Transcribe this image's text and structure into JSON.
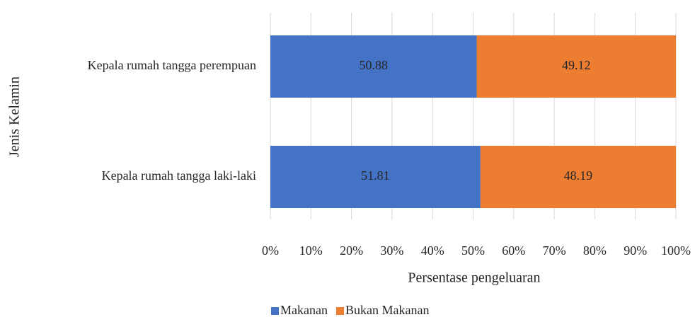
{
  "chart_data": {
    "type": "stacked_barh",
    "categories": [
      "Kepala rumah tangga perempuan",
      "Kepala rumah tangga laki-laki"
    ],
    "series": [
      {
        "name": "Makanan",
        "color": "#4472c4",
        "values": [
          50.88,
          51.81
        ]
      },
      {
        "name": "Bukan Makanan",
        "color": "#ed7d31",
        "values": [
          49.12,
          48.19
        ]
      }
    ],
    "xlim": [
      0,
      100
    ],
    "xticks": [
      {
        "value": 0,
        "label": "0%"
      },
      {
        "value": 10,
        "label": "10%"
      },
      {
        "value": 20,
        "label": "20%"
      },
      {
        "value": 30,
        "label": "30%"
      },
      {
        "value": 40,
        "label": "40%"
      },
      {
        "value": 50,
        "label": "50%"
      },
      {
        "value": 60,
        "label": "60%"
      },
      {
        "value": 70,
        "label": "70%"
      },
      {
        "value": 80,
        "label": "80%"
      },
      {
        "value": 90,
        "label": "90%"
      },
      {
        "value": 100,
        "label": "100%"
      }
    ],
    "xlabel": "Persentase pengeluaran",
    "ylabel": "Jenis Kelamin",
    "grid": true,
    "legend": "bottom"
  }
}
